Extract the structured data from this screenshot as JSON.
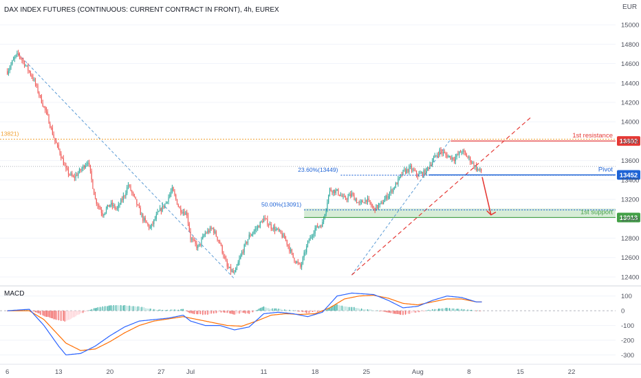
{
  "chart_data": {
    "type": "candlestick",
    "title": "DAX INDEX FUTURES (CONTINUOUS: CURRENT CONTRACT IN FRONT), 4h, EUREX",
    "currency": "EUR",
    "price_axis": {
      "ylim": [
        12350,
        15100
      ],
      "ticks": [
        12400,
        12600,
        12800,
        13000,
        13200,
        13400,
        13600,
        13800,
        14000,
        14200,
        14400,
        14600,
        14800,
        15000
      ]
    },
    "x_axis": {
      "ticks": [
        {
          "label": "6",
          "day": 0
        },
        {
          "label": "13",
          "day": 7
        },
        {
          "label": "20",
          "day": 14
        },
        {
          "label": "27",
          "day": 21
        },
        {
          "label": "Jul",
          "day": 25
        },
        {
          "label": "11",
          "day": 35
        },
        {
          "label": "18",
          "day": 42
        },
        {
          "label": "25",
          "day": 49
        },
        {
          "label": "Aug",
          "day": 56
        },
        {
          "label": "8",
          "day": 63
        },
        {
          "label": "15",
          "day": 70
        },
        {
          "label": "22",
          "day": 77
        }
      ],
      "range": [
        -1,
        83
      ]
    },
    "anchors": [
      [
        0,
        14520
      ],
      [
        1,
        14660
      ],
      [
        1.5,
        14700
      ],
      [
        2.5,
        14580
      ],
      [
        3.5,
        14450
      ],
      [
        4.5,
        14250
      ],
      [
        5.5,
        14050
      ],
      [
        6.5,
        13800
      ],
      [
        7.2,
        13680
      ],
      [
        8,
        13500
      ],
      [
        9,
        13420
      ],
      [
        10,
        13500
      ],
      [
        11,
        13600
      ],
      [
        12,
        13200
      ],
      [
        13,
        13050
      ],
      [
        14,
        13150
      ],
      [
        15,
        13100
      ],
      [
        16,
        13250
      ],
      [
        16.5,
        13350
      ],
      [
        17.5,
        13180
      ],
      [
        18.5,
        13000
      ],
      [
        19.5,
        12900
      ],
      [
        20.5,
        13050
      ],
      [
        21.5,
        13150
      ],
      [
        22.5,
        13300
      ],
      [
        23.5,
        13100
      ],
      [
        24.5,
        13050
      ],
      [
        25,
        12800
      ],
      [
        26,
        12700
      ],
      [
        27,
        12850
      ],
      [
        28,
        12900
      ],
      [
        29,
        12750
      ],
      [
        30,
        12500
      ],
      [
        31,
        12430
      ],
      [
        32,
        12650
      ],
      [
        33,
        12820
      ],
      [
        34,
        12900
      ],
      [
        35,
        13000
      ],
      [
        36,
        12920
      ],
      [
        37,
        12870
      ],
      [
        38,
        12780
      ],
      [
        39,
        12600
      ],
      [
        40,
        12500
      ],
      [
        41,
        12750
      ],
      [
        42,
        12900
      ],
      [
        43,
        12950
      ],
      [
        44,
        13300
      ],
      [
        45,
        13280
      ],
      [
        46,
        13200
      ],
      [
        47,
        13250
      ],
      [
        48,
        13150
      ],
      [
        49,
        13200
      ],
      [
        50,
        13100
      ],
      [
        51,
        13150
      ],
      [
        52,
        13250
      ],
      [
        53,
        13350
      ],
      [
        54,
        13480
      ],
      [
        55,
        13520
      ],
      [
        56,
        13450
      ],
      [
        57,
        13480
      ],
      [
        58,
        13600
      ],
      [
        59,
        13700
      ],
      [
        60,
        13650
      ],
      [
        61,
        13620
      ],
      [
        62,
        13700
      ],
      [
        63,
        13620
      ],
      [
        64,
        13520
      ],
      [
        64.8,
        13480
      ]
    ],
    "ma_value_label": "13821)",
    "fib_levels": [
      {
        "label": "23.60%(13449)",
        "price": 13449
      },
      {
        "label": "50.00%(13091)",
        "price": 13091
      }
    ],
    "levels": [
      {
        "name": "1st resistance",
        "price": 13802,
        "badge": "13802",
        "color": "#e53935"
      },
      {
        "name": "Pivot",
        "price": 13452,
        "badge": "13452",
        "color": "#1e63d6"
      },
      {
        "name": "1st support",
        "price": 13013,
        "badge": "13013",
        "color": "#43a047"
      }
    ],
    "macd": {
      "title": "MACD",
      "ticks": [
        100,
        0,
        -100,
        -200,
        -300
      ],
      "ylim": [
        -340,
        150
      ],
      "macd_anchors": [
        [
          0,
          0
        ],
        [
          3,
          10
        ],
        [
          5,
          -100
        ],
        [
          7,
          -240
        ],
        [
          8,
          -300
        ],
        [
          10,
          -290
        ],
        [
          12,
          -240
        ],
        [
          14,
          -170
        ],
        [
          16,
          -110
        ],
        [
          18,
          -70
        ],
        [
          20,
          -60
        ],
        [
          22,
          -50
        ],
        [
          24,
          -30
        ],
        [
          25,
          -70
        ],
        [
          27,
          -100
        ],
        [
          29,
          -100
        ],
        [
          31,
          -130
        ],
        [
          33,
          -110
        ],
        [
          35,
          -20
        ],
        [
          37,
          -10
        ],
        [
          39,
          -20
        ],
        [
          41,
          -40
        ],
        [
          43,
          -10
        ],
        [
          45,
          100
        ],
        [
          47,
          120
        ],
        [
          50,
          110
        ],
        [
          52,
          70
        ],
        [
          54,
          20
        ],
        [
          56,
          30
        ],
        [
          58,
          70
        ],
        [
          60,
          100
        ],
        [
          62,
          90
        ],
        [
          64,
          60
        ]
      ],
      "signal_anchors": [
        [
          0,
          0
        ],
        [
          3,
          0
        ],
        [
          5,
          -60
        ],
        [
          8,
          -220
        ],
        [
          10,
          -270
        ],
        [
          12,
          -260
        ],
        [
          14,
          -210
        ],
        [
          16,
          -150
        ],
        [
          18,
          -100
        ],
        [
          20,
          -70
        ],
        [
          22,
          -55
        ],
        [
          24,
          -40
        ],
        [
          26,
          -60
        ],
        [
          28,
          -80
        ],
        [
          30,
          -100
        ],
        [
          32,
          -105
        ],
        [
          34,
          -70
        ],
        [
          36,
          -30
        ],
        [
          38,
          -20
        ],
        [
          40,
          -25
        ],
        [
          42,
          -20
        ],
        [
          44,
          20
        ],
        [
          46,
          80
        ],
        [
          48,
          100
        ],
        [
          50,
          105
        ],
        [
          52,
          85
        ],
        [
          54,
          50
        ],
        [
          56,
          40
        ],
        [
          58,
          60
        ],
        [
          60,
          80
        ],
        [
          62,
          80
        ],
        [
          64,
          60
        ]
      ],
      "macd_color": "#2962ff",
      "signal_color": "#ff6d00"
    },
    "colors": {
      "up": "#26a69a",
      "down": "#ef5350",
      "trend": "#5b9bd5",
      "rising_channel": "#e53935",
      "ma_level": "#f0a030",
      "fib": "#1e63d6"
    }
  }
}
